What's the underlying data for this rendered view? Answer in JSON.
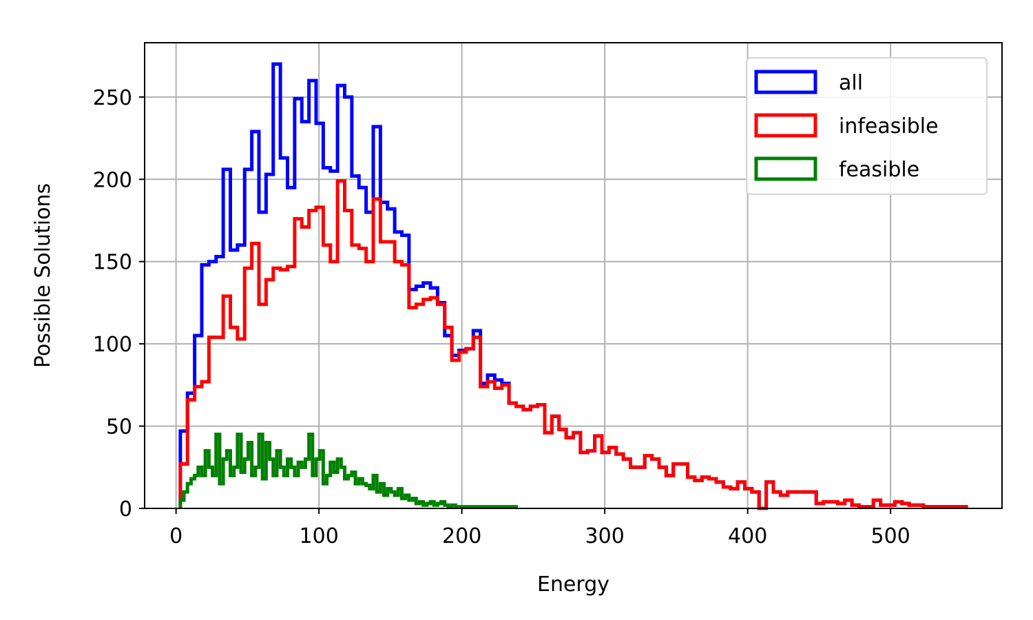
{
  "chart_data": {
    "type": "histogram-step",
    "xlabel": "Energy",
    "ylabel": "Possible Solutions",
    "xlim": [
      -22,
      578
    ],
    "ylim": [
      0,
      283
    ],
    "xticks": [
      0,
      100,
      200,
      300,
      400,
      500
    ],
    "yticks": [
      0,
      50,
      100,
      150,
      200,
      250
    ],
    "grid": true,
    "legend_position": "top-right",
    "series": [
      {
        "name": "all",
        "color": "#0000ff",
        "x_start": 3,
        "bin_width": 5,
        "values": [
          47,
          70,
          105,
          148,
          150,
          153,
          206,
          157,
          160,
          206,
          229,
          180,
          203,
          270,
          213,
          195,
          249,
          235,
          260,
          234,
          207,
          205,
          257,
          250,
          202,
          195,
          180,
          232,
          186,
          182,
          168,
          166,
          133,
          135,
          137,
          134,
          125,
          105,
          93,
          96,
          97,
          108,
          76,
          81,
          78,
          76,
          64,
          62,
          60,
          62,
          63,
          46,
          56,
          48,
          43,
          46,
          34,
          35,
          44,
          34,
          37,
          33,
          30,
          25,
          25,
          32,
          30,
          25,
          20,
          27,
          27,
          19,
          17,
          19,
          18,
          16,
          13,
          12,
          16,
          12,
          10,
          0,
          16,
          10,
          8,
          10,
          10,
          10,
          10,
          3,
          4,
          4,
          3,
          5,
          2,
          1,
          1,
          5,
          2,
          2,
          4,
          3,
          2,
          2,
          1,
          1,
          1,
          1,
          1,
          1
        ]
      },
      {
        "name": "infeasible",
        "color": "#ff0000",
        "x_start": 3,
        "bin_width": 5,
        "values": [
          27,
          66,
          74,
          77,
          104,
          104,
          129,
          110,
          103,
          146,
          161,
          124,
          139,
          146,
          145,
          147,
          176,
          171,
          181,
          183,
          160,
          150,
          199,
          181,
          160,
          158,
          150,
          188,
          162,
          162,
          150,
          148,
          122,
          124,
          127,
          128,
          124,
          110,
          90,
          95,
          97,
          104,
          74,
          77,
          73,
          75,
          64,
          62,
          60,
          62,
          63,
          46,
          56,
          48,
          43,
          46,
          34,
          35,
          44,
          34,
          37,
          33,
          30,
          25,
          25,
          32,
          30,
          25,
          20,
          27,
          27,
          19,
          17,
          19,
          18,
          16,
          13,
          12,
          16,
          12,
          10,
          0,
          16,
          10,
          8,
          10,
          10,
          10,
          10,
          3,
          4,
          4,
          3,
          5,
          2,
          1,
          1,
          5,
          2,
          2,
          4,
          3,
          2,
          2,
          1,
          1,
          1,
          1,
          1,
          1
        ]
      },
      {
        "name": "feasible",
        "color": "#008000",
        "x_start": 3,
        "bin_width": 2.5,
        "values": [
          5,
          10,
          15,
          18,
          20,
          25,
          20,
          35,
          25,
          20,
          45,
          15,
          30,
          35,
          20,
          25,
          45,
          22,
          30,
          40,
          20,
          25,
          45,
          18,
          40,
          30,
          20,
          35,
          25,
          20,
          30,
          25,
          20,
          28,
          25,
          30,
          45,
          20,
          30,
          35,
          15,
          20,
          28,
          22,
          30,
          25,
          18,
          20,
          22,
          15,
          18,
          15,
          14,
          12,
          20,
          10,
          15,
          8,
          12,
          10,
          8,
          12,
          6,
          8,
          5,
          6,
          3,
          4,
          2,
          3,
          4,
          2,
          3,
          4,
          2,
          1,
          2,
          1,
          1,
          1,
          1,
          1,
          1,
          1,
          1,
          1,
          1,
          1,
          1,
          1,
          1,
          1,
          1,
          1
        ]
      }
    ]
  }
}
